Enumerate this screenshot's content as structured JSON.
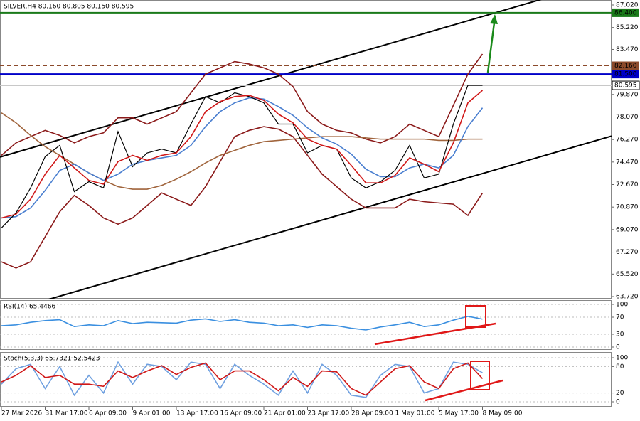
{
  "chart_data": [
    {
      "type": "line",
      "title": "SILVER,H4  80.160 80.805 80.150 80.595",
      "categories": [
        "27 Mar 2026",
        null,
        null,
        "31 Mar 17:00",
        null,
        null,
        "6 Apr 09:00",
        null,
        null,
        "9 Apr 01:00",
        null,
        null,
        "13 Apr 17:00",
        null,
        null,
        "16 Apr 09:00",
        null,
        null,
        "21 Apr 01:00",
        null,
        null,
        "23 Apr 17:00",
        null,
        null,
        "28 Apr 09:00",
        null,
        null,
        "1 May 01:00",
        null,
        null,
        "5 May 17:00",
        null,
        null,
        "8 May 09:00"
      ],
      "ylim": [
        63.72,
        87.02
      ],
      "yticks": [
        {
          "value": 87.02,
          "label": "87.020"
        },
        {
          "value": 85.22,
          "label": "85.220"
        },
        {
          "value": 83.47,
          "label": "83.470"
        },
        {
          "value": 79.87,
          "label": "79.870"
        },
        {
          "value": 78.07,
          "label": "78.070"
        },
        {
          "value": 76.27,
          "label": "76.270"
        },
        {
          "value": 74.47,
          "label": "74.470"
        },
        {
          "value": 72.67,
          "label": "72.670"
        },
        {
          "value": 70.87,
          "label": "70.870"
        },
        {
          "value": 69.07,
          "label": "69.070"
        },
        {
          "value": 67.27,
          "label": "67.270"
        },
        {
          "value": 65.52,
          "label": "65.520"
        },
        {
          "value": 63.72,
          "label": "63.720"
        }
      ],
      "levels": [
        {
          "value": 86.4,
          "label": "86.400",
          "color": "#1a7a1a",
          "dashed": false
        },
        {
          "value": 82.16,
          "label": "82.160",
          "color": "#8b4a2b",
          "dashed": true
        },
        {
          "value": 81.5,
          "label": "81.500",
          "color": "#0000c8",
          "dashed": false
        },
        {
          "value": 80.595,
          "label": "80.595",
          "color": "#c8c8c8",
          "dashed": false
        }
      ],
      "trendlines": [
        {
          "values": [
            74.9,
            86.1
          ],
          "color": "#000000"
        },
        {
          "values": [
            62.4,
            73.55
          ],
          "color": "#000000"
        }
      ],
      "series": [
        {
          "color": "#8b1a1a",
          "values": [
            75,
            76,
            76.5,
            77,
            76.6,
            76,
            76.5,
            76.8,
            78,
            78,
            77.5,
            78,
            78.5,
            80,
            81.5,
            82,
            82.5,
            82.3,
            82,
            81.5,
            80.5,
            78.5,
            77.5,
            77,
            76.8,
            76.3,
            76,
            76.5,
            77.5,
            77,
            76.5,
            79,
            81.5,
            83.1
          ]
        },
        {
          "color": "#8b1a1a",
          "values": [
            66.5,
            66,
            66.5,
            68.5,
            70.5,
            71.8,
            71,
            70,
            69.5,
            70,
            71,
            72,
            71.5,
            71,
            72.5,
            74.5,
            76.5,
            77,
            77.3,
            77.1,
            76.5,
            75,
            73.5,
            72.5,
            71.5,
            70.8,
            70.8,
            70.8,
            71.5,
            71.3,
            71.2,
            71.1,
            70.2,
            72
          ]
        },
        {
          "color": "#a0643c",
          "values": [
            78.4,
            77.6,
            76.6,
            75.7,
            75,
            74.3,
            73.6,
            73,
            72.5,
            72.3,
            72.3,
            72.6,
            73.1,
            73.7,
            74.4,
            75,
            75.4,
            75.8,
            76.1,
            76.2,
            76.3,
            76.4,
            76.5,
            76.5,
            76.5,
            76.4,
            76.3,
            76.3,
            76.3,
            76.3,
            76.2,
            76.2,
            76.3,
            76.3
          ]
        },
        {
          "color": "#4a7fd0",
          "values": [
            70,
            70.1,
            70.8,
            72.2,
            73.8,
            74.3,
            73.6,
            73,
            73.5,
            74.3,
            74.6,
            74.8,
            75,
            75.8,
            77.3,
            78.5,
            79.2,
            79.6,
            79.5,
            78.9,
            78.2,
            77.2,
            76.4,
            75.9,
            75.1,
            73.9,
            73.3,
            73.3,
            74,
            74.3,
            74,
            75,
            77.3,
            78.8
          ]
        },
        {
          "color": "#000000",
          "values": [
            69.2,
            70.4,
            72.4,
            74.9,
            75.8,
            72.1,
            72.9,
            72.4,
            76.9,
            74.1,
            75.2,
            75.5,
            75.2,
            77.5,
            79.7,
            79.2,
            80,
            79.7,
            79.2,
            77.5,
            77.5,
            75.2,
            75.8,
            75.5,
            73.2,
            72.4,
            72.9,
            73.8,
            75.8,
            73.2,
            73.5,
            77.5,
            80.6,
            80.595
          ]
        },
        {
          "color": "#d01818",
          "values": [
            70,
            70.3,
            71.5,
            73.5,
            75,
            74,
            73,
            72.7,
            74.5,
            75,
            74.6,
            75,
            75.2,
            76.5,
            78.5,
            79.3,
            79.7,
            79.8,
            79.4,
            78.3,
            77.6,
            76.3,
            75.8,
            75.5,
            74.2,
            72.8,
            72.8,
            73.4,
            74.8,
            74.3,
            73.7,
            76,
            79.2,
            80.2
          ]
        }
      ]
    },
    {
      "type": "line",
      "title": "RSI(14) 65.4466",
      "ylim": [
        0,
        100
      ],
      "yticks": [
        100,
        70,
        30,
        0
      ],
      "grid": true,
      "series": [
        {
          "color": "#3a8fe0",
          "values": [
            50,
            52,
            58,
            62,
            64,
            48,
            52,
            50,
            62,
            55,
            58,
            57,
            56,
            63,
            66,
            60,
            64,
            58,
            56,
            50,
            52,
            46,
            52,
            50,
            44,
            40,
            47,
            52,
            58,
            48,
            52,
            63,
            72,
            65.4466
          ]
        }
      ]
    },
    {
      "type": "line",
      "title": "Stoch(5,3,3) 65.7321 52.5423",
      "ylim": [
        0,
        100
      ],
      "yticks": [
        100,
        80,
        20,
        0
      ],
      "grid": true,
      "series": [
        {
          "color": "#6fa0e0",
          "values": [
            40,
            75,
            85,
            30,
            80,
            15,
            60,
            20,
            90,
            40,
            85,
            80,
            50,
            90,
            85,
            30,
            85,
            60,
            40,
            15,
            70,
            20,
            85,
            60,
            15,
            10,
            60,
            85,
            80,
            20,
            30,
            90,
            85,
            65.7321
          ]
        },
        {
          "color": "#d01818",
          "values": [
            45,
            60,
            82,
            55,
            60,
            40,
            40,
            35,
            70,
            55,
            70,
            82,
            62,
            78,
            88,
            50,
            70,
            70,
            50,
            25,
            55,
            35,
            70,
            68,
            30,
            15,
            45,
            75,
            82,
            45,
            30,
            75,
            88,
            52.5423
          ]
        }
      ]
    }
  ]
}
